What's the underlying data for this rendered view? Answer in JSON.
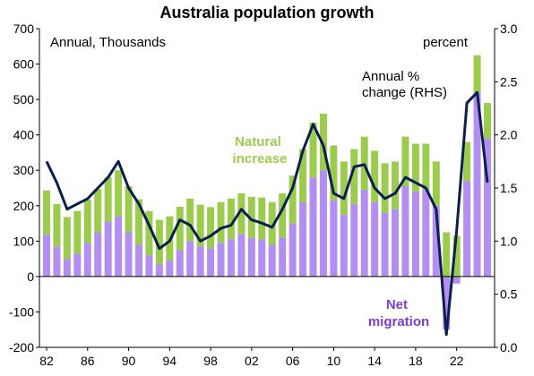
{
  "chart_data": {
    "type": "bar",
    "title": "Australia population growth",
    "left_axis_label": "Annual, Thousands",
    "right_axis_label": "percent",
    "x_ticks": [
      "82",
      "86",
      "90",
      "94",
      "98",
      "02",
      "06",
      "10",
      "14",
      "18",
      "22"
    ],
    "x_range": [
      1982,
      2025
    ],
    "ylim_left": [
      -200,
      700
    ],
    "ylim_right": [
      0.0,
      3.0
    ],
    "yticks_left": [
      "700",
      "600",
      "500",
      "400",
      "300",
      "200",
      "100",
      "0",
      "-100",
      "-200"
    ],
    "yticks_right": [
      "3.0",
      "2.5",
      "2.0",
      "1.5",
      "1.0",
      "0.5",
      "0.0"
    ],
    "grid": false,
    "stacked": true,
    "series": [
      {
        "name": "Net migration",
        "annotation": "Net\nmigration",
        "type": "bar",
        "axis": "left",
        "color": "#b28ff0",
        "points": [
          [
            1982,
            118
          ],
          [
            1983,
            85
          ],
          [
            1984,
            50
          ],
          [
            1985,
            65
          ],
          [
            1986,
            95
          ],
          [
            1987,
            125
          ],
          [
            1988,
            155
          ],
          [
            1989,
            170
          ],
          [
            1990,
            125
          ],
          [
            1991,
            90
          ],
          [
            1992,
            60
          ],
          [
            1993,
            35
          ],
          [
            1994,
            45
          ],
          [
            1995,
            75
          ],
          [
            1996,
            100
          ],
          [
            1997,
            85
          ],
          [
            1998,
            80
          ],
          [
            1999,
            95
          ],
          [
            2000,
            105
          ],
          [
            2001,
            120
          ],
          [
            2002,
            110
          ],
          [
            2003,
            105
          ],
          [
            2004,
            90
          ],
          [
            2005,
            110
          ],
          [
            2006,
            150
          ],
          [
            2007,
            210
          ],
          [
            2008,
            280
          ],
          [
            2009,
            300
          ],
          [
            2010,
            215
          ],
          [
            2011,
            175
          ],
          [
            2012,
            205
          ],
          [
            2013,
            245
          ],
          [
            2014,
            210
          ],
          [
            2015,
            180
          ],
          [
            2016,
            190
          ],
          [
            2017,
            255
          ],
          [
            2018,
            240
          ],
          [
            2019,
            245
          ],
          [
            2020,
            200
          ],
          [
            2021,
            -150
          ],
          [
            2022,
            -20
          ],
          [
            2023,
            270
          ],
          [
            2024,
            520
          ],
          [
            2025,
            390
          ]
        ]
      },
      {
        "name": "Natural increase",
        "annotation": "Natural\nincrease",
        "type": "bar",
        "axis": "left",
        "color": "#9bcc4e",
        "points": [
          [
            1982,
            125
          ],
          [
            1983,
            120
          ],
          [
            1984,
            118
          ],
          [
            1985,
            120
          ],
          [
            1986,
            122
          ],
          [
            1987,
            122
          ],
          [
            1988,
            125
          ],
          [
            1989,
            130
          ],
          [
            1990,
            130
          ],
          [
            1991,
            128
          ],
          [
            1992,
            125
          ],
          [
            1993,
            125
          ],
          [
            1994,
            125
          ],
          [
            1995,
            122
          ],
          [
            1996,
            120
          ],
          [
            1997,
            118
          ],
          [
            1998,
            116
          ],
          [
            1999,
            115
          ],
          [
            2000,
            115
          ],
          [
            2001,
            115
          ],
          [
            2002,
            115
          ],
          [
            2003,
            118
          ],
          [
            2004,
            120
          ],
          [
            2005,
            125
          ],
          [
            2006,
            135
          ],
          [
            2007,
            150
          ],
          [
            2008,
            155
          ],
          [
            2009,
            160
          ],
          [
            2010,
            155
          ],
          [
            2011,
            150
          ],
          [
            2012,
            155
          ],
          [
            2013,
            150
          ],
          [
            2014,
            145
          ],
          [
            2015,
            140
          ],
          [
            2016,
            135
          ],
          [
            2017,
            140
          ],
          [
            2018,
            135
          ],
          [
            2019,
            130
          ],
          [
            2020,
            125
          ],
          [
            2021,
            125
          ],
          [
            2022,
            115
          ],
          [
            2023,
            110
          ],
          [
            2024,
            105
          ],
          [
            2025,
            100
          ]
        ]
      },
      {
        "name": "Annual % change (RHS)",
        "annotation": "Annual %\nchange (RHS)",
        "type": "line",
        "axis": "right",
        "color": "#0b1f4d",
        "points": [
          [
            1982,
            1.75
          ],
          [
            1983,
            1.55
          ],
          [
            1984,
            1.3
          ],
          [
            1985,
            1.35
          ],
          [
            1986,
            1.4
          ],
          [
            1987,
            1.5
          ],
          [
            1988,
            1.6
          ],
          [
            1989,
            1.75
          ],
          [
            1990,
            1.5
          ],
          [
            1991,
            1.35
          ],
          [
            1992,
            1.15
          ],
          [
            1993,
            0.93
          ],
          [
            1994,
            1.0
          ],
          [
            1995,
            1.2
          ],
          [
            1996,
            1.15
          ],
          [
            1997,
            1.0
          ],
          [
            1998,
            1.05
          ],
          [
            1999,
            1.12
          ],
          [
            2000,
            1.15
          ],
          [
            2001,
            1.3
          ],
          [
            2002,
            1.2
          ],
          [
            2003,
            1.17
          ],
          [
            2004,
            1.13
          ],
          [
            2005,
            1.3
          ],
          [
            2006,
            1.5
          ],
          [
            2007,
            1.85
          ],
          [
            2008,
            2.1
          ],
          [
            2009,
            1.9
          ],
          [
            2010,
            1.45
          ],
          [
            2011,
            1.4
          ],
          [
            2012,
            1.7
          ],
          [
            2013,
            1.72
          ],
          [
            2014,
            1.5
          ],
          [
            2015,
            1.4
          ],
          [
            2016,
            1.45
          ],
          [
            2017,
            1.6
          ],
          [
            2018,
            1.55
          ],
          [
            2019,
            1.5
          ],
          [
            2020,
            1.3
          ],
          [
            2021,
            0.12
          ],
          [
            2022,
            1.1
          ],
          [
            2023,
            2.3
          ],
          [
            2024,
            2.4
          ],
          [
            2025,
            1.55
          ]
        ]
      }
    ]
  }
}
